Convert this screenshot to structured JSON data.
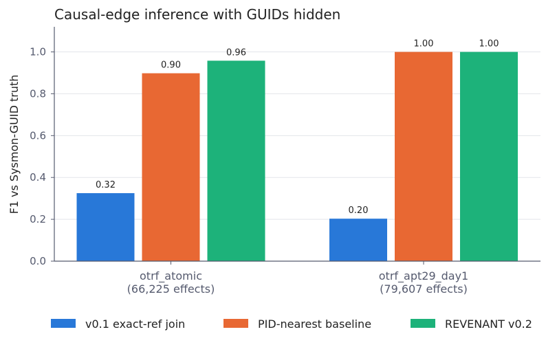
{
  "chart_data": {
    "type": "bar",
    "title": "Causal-edge inference with GUIDs hidden",
    "xlabel": "",
    "ylabel": "F1 vs Sysmon-GUID truth",
    "ylim": [
      0,
      1.12
    ],
    "yticks": [
      "0.0",
      "0.2",
      "0.4",
      "0.6",
      "0.8",
      "1.0"
    ],
    "grid": true,
    "legend_position": "bottom",
    "categories": [
      [
        "otrf_atomic",
        "(66,225 effects)"
      ],
      [
        "otrf_apt29_day1",
        "(79,607 effects)"
      ]
    ],
    "series": [
      {
        "name": "v0.1 exact-ref join",
        "color": "#2878d8",
        "values": [
          0.325,
          0.203
        ],
        "labels": [
          "0.32",
          "0.20"
        ]
      },
      {
        "name": "PID-nearest baseline",
        "color": "#e86833",
        "values": [
          0.898,
          1.0
        ],
        "labels": [
          "0.90",
          "1.00"
        ]
      },
      {
        "name": "REVENANT v0.2",
        "color": "#1db27a",
        "values": [
          0.958,
          1.0
        ],
        "labels": [
          "0.96",
          "1.00"
        ]
      }
    ]
  }
}
